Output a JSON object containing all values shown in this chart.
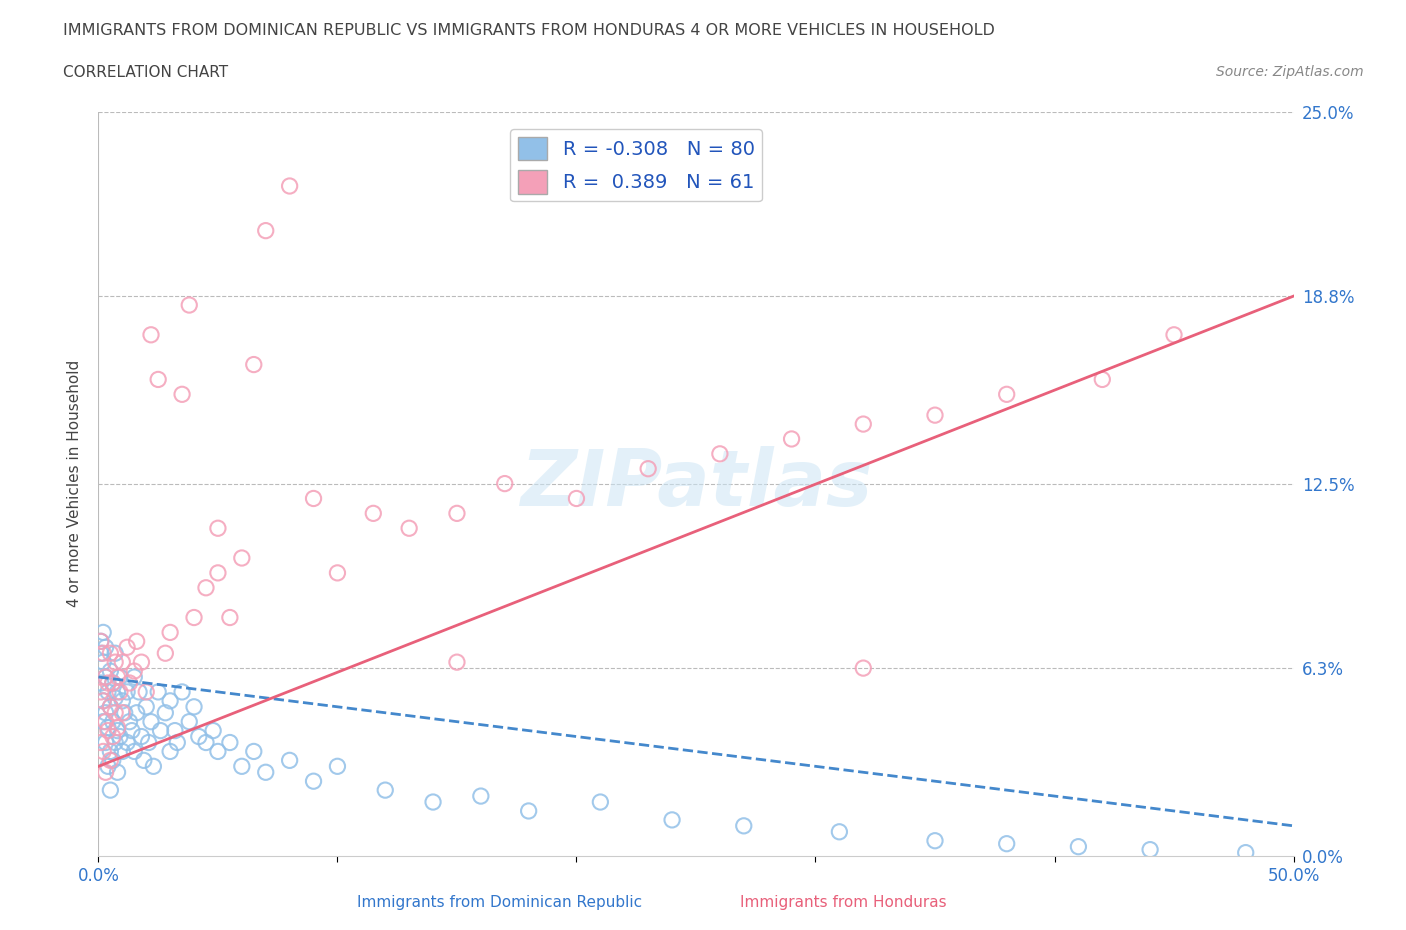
{
  "title": "IMMIGRANTS FROM DOMINICAN REPUBLIC VS IMMIGRANTS FROM HONDURAS 4 OR MORE VEHICLES IN HOUSEHOLD",
  "subtitle": "CORRELATION CHART",
  "source": "Source: ZipAtlas.com",
  "xlabel_blue": "Immigrants from Dominican Republic",
  "xlabel_pink": "Immigrants from Honduras",
  "ylabel": "4 or more Vehicles in Household",
  "xlim": [
    0.0,
    0.5
  ],
  "ylim": [
    0.0,
    0.25
  ],
  "ytick_labels_right": [
    "0.0%",
    "6.3%",
    "12.5%",
    "18.8%",
    "25.0%"
  ],
  "yticks_right": [
    0.0,
    0.063,
    0.125,
    0.188,
    0.25
  ],
  "hlines": [
    0.063,
    0.125,
    0.188,
    0.25
  ],
  "R_blue": -0.308,
  "N_blue": 80,
  "R_pink": 0.389,
  "N_pink": 61,
  "color_blue": "#92c0e8",
  "color_pink": "#f4a0b8",
  "line_color_blue": "#4488cc",
  "line_color_pink": "#e8607a",
  "title_color": "#444444",
  "tick_color": "#3377cc",
  "legend_text_color": "#2255bb",
  "watermark": "ZIPatlas",
  "blue_line_start_y": 0.06,
  "blue_line_end_y": 0.01,
  "pink_line_start_y": 0.03,
  "pink_line_end_y": 0.188,
  "blue_scatter_x": [
    0.001,
    0.001,
    0.001,
    0.002,
    0.002,
    0.002,
    0.002,
    0.003,
    0.003,
    0.003,
    0.003,
    0.004,
    0.004,
    0.004,
    0.005,
    0.005,
    0.005,
    0.005,
    0.006,
    0.006,
    0.006,
    0.007,
    0.007,
    0.007,
    0.008,
    0.008,
    0.008,
    0.009,
    0.009,
    0.01,
    0.01,
    0.011,
    0.012,
    0.012,
    0.013,
    0.014,
    0.015,
    0.015,
    0.016,
    0.017,
    0.018,
    0.019,
    0.02,
    0.021,
    0.022,
    0.023,
    0.025,
    0.026,
    0.028,
    0.03,
    0.03,
    0.032,
    0.033,
    0.035,
    0.038,
    0.04,
    0.042,
    0.045,
    0.048,
    0.05,
    0.055,
    0.06,
    0.065,
    0.07,
    0.08,
    0.09,
    0.1,
    0.12,
    0.14,
    0.16,
    0.18,
    0.21,
    0.24,
    0.27,
    0.31,
    0.35,
    0.38,
    0.41,
    0.44,
    0.48
  ],
  "blue_scatter_y": [
    0.072,
    0.058,
    0.068,
    0.075,
    0.065,
    0.052,
    0.045,
    0.07,
    0.06,
    0.048,
    0.038,
    0.055,
    0.043,
    0.03,
    0.062,
    0.05,
    0.035,
    0.022,
    0.058,
    0.045,
    0.032,
    0.068,
    0.053,
    0.038,
    0.055,
    0.042,
    0.028,
    0.06,
    0.04,
    0.052,
    0.035,
    0.048,
    0.055,
    0.038,
    0.045,
    0.042,
    0.06,
    0.035,
    0.048,
    0.055,
    0.04,
    0.032,
    0.05,
    0.038,
    0.045,
    0.03,
    0.055,
    0.042,
    0.048,
    0.052,
    0.035,
    0.042,
    0.038,
    0.055,
    0.045,
    0.05,
    0.04,
    0.038,
    0.042,
    0.035,
    0.038,
    0.03,
    0.035,
    0.028,
    0.032,
    0.025,
    0.03,
    0.022,
    0.018,
    0.02,
    0.015,
    0.018,
    0.012,
    0.01,
    0.008,
    0.005,
    0.004,
    0.003,
    0.002,
    0.001
  ],
  "pink_scatter_x": [
    0.001,
    0.001,
    0.001,
    0.002,
    0.002,
    0.002,
    0.003,
    0.003,
    0.003,
    0.004,
    0.004,
    0.005,
    0.005,
    0.005,
    0.006,
    0.006,
    0.007,
    0.007,
    0.008,
    0.008,
    0.009,
    0.01,
    0.01,
    0.012,
    0.013,
    0.015,
    0.016,
    0.018,
    0.02,
    0.022,
    0.025,
    0.028,
    0.03,
    0.035,
    0.038,
    0.04,
    0.045,
    0.05,
    0.055,
    0.06,
    0.065,
    0.07,
    0.08,
    0.09,
    0.1,
    0.115,
    0.13,
    0.15,
    0.17,
    0.2,
    0.23,
    0.26,
    0.29,
    0.32,
    0.35,
    0.38,
    0.42,
    0.45,
    0.05,
    0.15,
    0.32
  ],
  "pink_scatter_y": [
    0.072,
    0.055,
    0.038,
    0.068,
    0.052,
    0.035,
    0.06,
    0.045,
    0.028,
    0.058,
    0.042,
    0.068,
    0.05,
    0.032,
    0.058,
    0.04,
    0.065,
    0.048,
    0.06,
    0.043,
    0.055,
    0.065,
    0.048,
    0.07,
    0.058,
    0.062,
    0.072,
    0.065,
    0.055,
    0.175,
    0.16,
    0.068,
    0.075,
    0.155,
    0.185,
    0.08,
    0.09,
    0.095,
    0.08,
    0.1,
    0.165,
    0.21,
    0.225,
    0.12,
    0.095,
    0.115,
    0.11,
    0.115,
    0.125,
    0.12,
    0.13,
    0.135,
    0.14,
    0.145,
    0.148,
    0.155,
    0.16,
    0.175,
    0.11,
    0.065,
    0.063
  ]
}
